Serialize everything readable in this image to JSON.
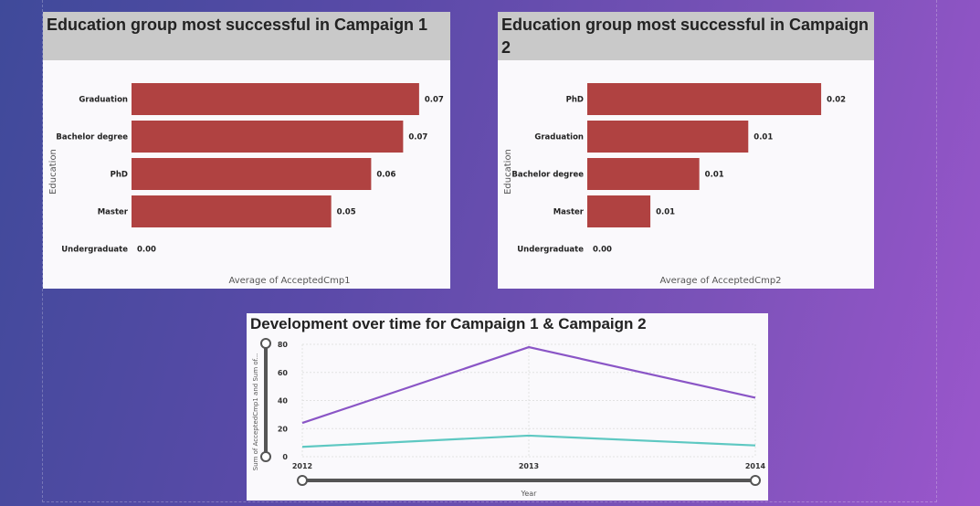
{
  "cards": [
    {
      "title": "Education group most successful in Campaign 1",
      "y_axis_label": "Education",
      "x_axis_label": "Average of AcceptedCmp1"
    },
    {
      "title": "Education group most successful in Campaign 2",
      "y_axis_label": "Education",
      "x_axis_label": "Average of AcceptedCmp2"
    },
    {
      "title": "Development over time for Campaign 1 & Campaign 2",
      "y_axis_label": "Sum of AcceptedCmp1 and Sum of...",
      "x_axis_label": "Year"
    }
  ],
  "colors": {
    "bar": "#b04241",
    "series1": "#5ec8c2",
    "series2": "#8a55c6",
    "title_bg": "#c9c9c9"
  },
  "chart_data": [
    {
      "type": "bar",
      "orientation": "horizontal",
      "title": "Education group most successful in Campaign 1",
      "ylabel": "Education",
      "xlabel": "Average of AcceptedCmp1",
      "categories": [
        "Graduation",
        "Bachelor degree",
        "PhD",
        "Master",
        "Undergraduate"
      ],
      "values": [
        0.072,
        0.068,
        0.06,
        0.05,
        0.0
      ],
      "labels": [
        "0.07",
        "0.07",
        "0.06",
        "0.05",
        "0.00"
      ],
      "xlim": [
        0,
        0.075
      ]
    },
    {
      "type": "bar",
      "orientation": "horizontal",
      "title": "Education group most successful in Campaign 2",
      "ylabel": "Education",
      "xlabel": "Average of AcceptedCmp2",
      "categories": [
        "PhD",
        "Graduation",
        "Bachelor degree",
        "Master",
        "Undergraduate"
      ],
      "values": [
        0.0215,
        0.0148,
        0.0103,
        0.0058,
        0.0
      ],
      "labels": [
        "0.02",
        "0.01",
        "0.01",
        "0.01",
        "0.00"
      ],
      "xlim": [
        0,
        0.0225
      ]
    },
    {
      "type": "line",
      "title": "Development over time for Campaign 1 & Campaign 2",
      "xlabel": "Year",
      "ylabel": "Sum of AcceptedCmp1 and Sum of...",
      "x": [
        "2012",
        "2013",
        "2014"
      ],
      "series": [
        {
          "values": [
            24,
            78,
            42
          ]
        },
        {
          "values": [
            7,
            15,
            8
          ]
        }
      ],
      "ylim": [
        0,
        80
      ],
      "yticks": [
        "0",
        "20",
        "40",
        "60",
        "80"
      ],
      "grid": true
    }
  ]
}
